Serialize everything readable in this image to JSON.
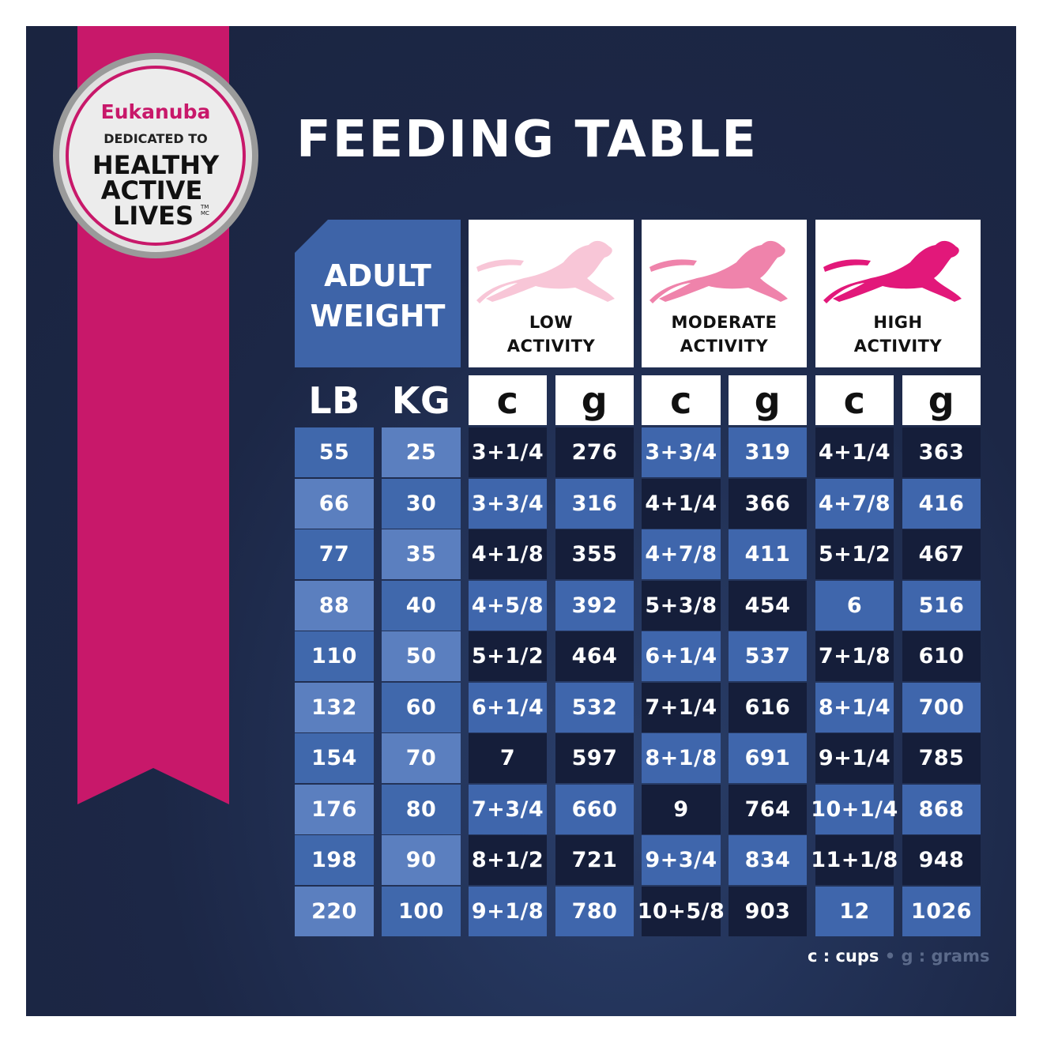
{
  "badge": {
    "brand": "Eukanuba",
    "tagline": "DEDICATED TO",
    "lines": [
      "HEALTHY",
      "ACTIVE",
      "LIVES"
    ],
    "marks": [
      "TM",
      "MC"
    ]
  },
  "title": "FEEDING TABLE",
  "table": {
    "weight_header": [
      "ADULT",
      "WEIGHT"
    ],
    "activities": [
      [
        "LOW",
        "ACTIVITY"
      ],
      [
        "MODERATE",
        "ACTIVITY"
      ],
      [
        "HIGH",
        "ACTIVITY"
      ]
    ],
    "activity_colors": [
      "#f8c6d7",
      "#ef83ab",
      "#e2187a"
    ],
    "units": [
      "LB",
      "KG",
      "c",
      "g",
      "c",
      "g",
      "c",
      "g"
    ],
    "rows": [
      [
        55,
        25,
        "3+1/4",
        276,
        "3+3/4",
        319,
        "4+1/4",
        363
      ],
      [
        66,
        30,
        "3+3/4",
        316,
        "4+1/4",
        366,
        "4+7/8",
        416
      ],
      [
        77,
        35,
        "4+1/8",
        355,
        "4+7/8",
        411,
        "5+1/2",
        467
      ],
      [
        88,
        40,
        "4+5/8",
        392,
        "5+3/8",
        454,
        "6",
        516
      ],
      [
        110,
        50,
        "5+1/2",
        464,
        "6+1/4",
        537,
        "7+1/8",
        610
      ],
      [
        132,
        60,
        "6+1/4",
        532,
        "7+1/4",
        616,
        "8+1/4",
        700
      ],
      [
        154,
        70,
        "7",
        597,
        "8+1/8",
        691,
        "9+1/4",
        785
      ],
      [
        176,
        80,
        "7+3/4",
        660,
        "9",
        764,
        "10+1/4",
        868
      ],
      [
        198,
        90,
        "8+1/2",
        721,
        "9+3/4",
        834,
        "11+1/8",
        948
      ],
      [
        220,
        100,
        "9+1/8",
        780,
        "10+5/8",
        903,
        "12",
        1026
      ]
    ]
  },
  "legend": {
    "cups": "c : cups",
    "separator": "•",
    "grams": "g : grams"
  }
}
